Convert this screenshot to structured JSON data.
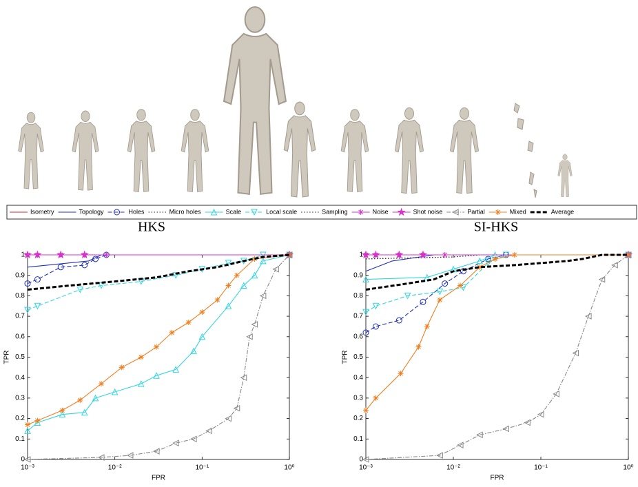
{
  "chart_data": [
    {
      "type": "line",
      "title": "HKS",
      "xlabel": "FPR",
      "ylabel": "TPR",
      "xscale": "log",
      "grid": false,
      "legend": "top",
      "xlim": [
        0.001,
        1
      ],
      "ylim": [
        0,
        1
      ],
      "xticks": [
        {
          "value": 0.001,
          "label": "10⁻³"
        },
        {
          "value": 0.01,
          "label": "10⁻²"
        },
        {
          "value": 0.1,
          "label": "10⁻¹"
        },
        {
          "value": 1,
          "label": "10⁰"
        }
      ],
      "yticks": [
        0,
        0.1,
        0.2,
        0.3,
        0.4,
        0.5,
        0.6,
        0.7,
        0.8,
        0.9,
        1
      ],
      "series": [
        {
          "name": "Isometry",
          "color": "#d62728",
          "dash": "solid",
          "marker": "none",
          "x": [
            0.001,
            1
          ],
          "values": [
            1,
            1
          ]
        },
        {
          "name": "Topology",
          "color": "#1f2fbf",
          "dash": "solid",
          "marker": "none",
          "x": [
            0.001,
            0.005,
            0.007,
            1
          ],
          "values": [
            0.94,
            0.97,
            1,
            1
          ]
        },
        {
          "name": "Holes",
          "color": "#1f2fbf",
          "dash": "dash",
          "marker": "circle",
          "x": [
            0.001,
            0.0013,
            0.0024,
            0.0045,
            0.006,
            0.008,
            1
          ],
          "values": [
            0.86,
            0.88,
            0.94,
            0.95,
            0.98,
            1,
            1
          ]
        },
        {
          "name": "Micro holes",
          "color": "#222222",
          "dash": "dot",
          "marker": "none",
          "x": [
            0.001,
            1
          ],
          "values": [
            1,
            1
          ]
        },
        {
          "name": "Scale",
          "color": "#33d6e0",
          "dash": "solid",
          "marker": "triangle-up",
          "x": [
            0.001,
            0.0013,
            0.0025,
            0.0045,
            0.006,
            0.01,
            0.02,
            0.03,
            0.05,
            0.08,
            0.1,
            0.2,
            0.3,
            0.4,
            0.5,
            1
          ],
          "values": [
            0.14,
            0.18,
            0.22,
            0.23,
            0.3,
            0.33,
            0.37,
            0.41,
            0.44,
            0.53,
            0.6,
            0.75,
            0.85,
            0.9,
            0.97,
            1
          ]
        },
        {
          "name": "Local scale",
          "color": "#33d6e0",
          "dash": "dash",
          "marker": "triangle-down",
          "x": [
            0.001,
            0.0013,
            0.004,
            0.007,
            0.02,
            0.05,
            0.1,
            0.2,
            0.3,
            0.5,
            1
          ],
          "values": [
            0.73,
            0.75,
            0.83,
            0.85,
            0.87,
            0.9,
            0.93,
            0.96,
            0.97,
            1,
            1
          ]
        },
        {
          "name": "Sampling",
          "color": "#222222",
          "dash": "dot",
          "marker": "none",
          "x": [
            0.001,
            1
          ],
          "values": [
            1,
            1
          ]
        },
        {
          "name": "Noise",
          "color": "#d633c8",
          "dash": "solid",
          "marker": "asterisk",
          "x": [
            0.001,
            0.0013,
            0.0024,
            0.0045,
            0.008,
            1
          ],
          "values": [
            1,
            1,
            1,
            1,
            1,
            1
          ]
        },
        {
          "name": "Shot noise",
          "color": "#d633c8",
          "dash": "solid",
          "marker": "star",
          "x": [
            0.001,
            0.0013,
            0.0024,
            0.0045,
            1
          ],
          "values": [
            1,
            1,
            1,
            1,
            1
          ]
        },
        {
          "name": "Partial",
          "color": "#888888",
          "dash": "dashdot",
          "marker": "triangle-left",
          "x": [
            0.001,
            0.007,
            0.015,
            0.03,
            0.05,
            0.08,
            0.12,
            0.2,
            0.25,
            0.3,
            0.35,
            0.4,
            0.5,
            0.7,
            1
          ],
          "values": [
            0,
            0.01,
            0.02,
            0.04,
            0.08,
            0.1,
            0.14,
            0.2,
            0.25,
            0.4,
            0.6,
            0.66,
            0.8,
            0.93,
            1
          ]
        },
        {
          "name": "Mixed",
          "color": "#f07f1f",
          "dash": "solid",
          "marker": "asterisk",
          "x": [
            0.001,
            0.0013,
            0.0025,
            0.004,
            0.007,
            0.012,
            0.02,
            0.03,
            0.045,
            0.07,
            0.1,
            0.15,
            0.2,
            0.25,
            0.4,
            1
          ],
          "values": [
            0.17,
            0.19,
            0.24,
            0.29,
            0.37,
            0.45,
            0.5,
            0.55,
            0.62,
            0.67,
            0.72,
            0.78,
            0.85,
            0.9,
            0.98,
            1
          ]
        },
        {
          "name": "Average",
          "color": "#000000",
          "dash": "thick",
          "marker": "none",
          "x": [
            0.001,
            0.003,
            0.01,
            0.03,
            0.07,
            0.15,
            0.3,
            0.5,
            1
          ],
          "values": [
            0.83,
            0.85,
            0.87,
            0.89,
            0.92,
            0.94,
            0.97,
            0.99,
            1
          ]
        }
      ]
    },
    {
      "type": "line",
      "title": "SI-HKS",
      "xlabel": "FPR",
      "ylabel": "TPR",
      "xscale": "log",
      "grid": false,
      "xlim": [
        0.001,
        1
      ],
      "ylim": [
        0,
        1
      ],
      "xticks": [
        {
          "value": 0.001,
          "label": "10⁻³"
        },
        {
          "value": 0.01,
          "label": "10⁻²"
        },
        {
          "value": 0.1,
          "label": "10⁻¹"
        },
        {
          "value": 1,
          "label": "10⁰"
        }
      ],
      "yticks": [
        0,
        0.1,
        0.2,
        0.3,
        0.4,
        0.5,
        0.6,
        0.7,
        0.8,
        0.9,
        1
      ],
      "series": [
        {
          "name": "Isometry",
          "color": "#d62728",
          "dash": "solid",
          "marker": "none",
          "x": [
            0.001,
            1
          ],
          "values": [
            1,
            1
          ]
        },
        {
          "name": "Topology",
          "color": "#1f2fbf",
          "dash": "solid",
          "marker": "none",
          "x": [
            0.001,
            0.002,
            0.006,
            1
          ],
          "values": [
            0.92,
            0.97,
            1,
            1
          ]
        },
        {
          "name": "Holes",
          "color": "#1f2fbf",
          "dash": "dash",
          "marker": "circle",
          "x": [
            0.001,
            0.0013,
            0.0024,
            0.0045,
            0.008,
            0.013,
            0.025,
            0.04,
            1
          ],
          "values": [
            0.62,
            0.65,
            0.68,
            0.77,
            0.86,
            0.92,
            0.98,
            1,
            1
          ]
        },
        {
          "name": "Micro holes",
          "color": "#222222",
          "dash": "dot",
          "marker": "none",
          "x": [
            0.001,
            0.01,
            0.02,
            1
          ],
          "values": [
            0.98,
            0.99,
            1,
            1
          ]
        },
        {
          "name": "Scale",
          "color": "#33d6e0",
          "dash": "solid",
          "marker": "triangle-up",
          "x": [
            0.001,
            0.005,
            0.01,
            0.02,
            0.03,
            1
          ],
          "values": [
            0.88,
            0.89,
            0.93,
            0.97,
            1,
            1
          ]
        },
        {
          "name": "Local scale",
          "color": "#33d6e0",
          "dash": "dash",
          "marker": "triangle-down",
          "x": [
            0.001,
            0.0013,
            0.003,
            0.007,
            0.013,
            0.025,
            0.04,
            1
          ],
          "values": [
            0.72,
            0.75,
            0.8,
            0.82,
            0.84,
            0.96,
            1,
            1
          ]
        },
        {
          "name": "Sampling",
          "color": "#222222",
          "dash": "dot",
          "marker": "none",
          "x": [
            0.001,
            0.01,
            0.02,
            1
          ],
          "values": [
            0.98,
            0.99,
            1,
            1
          ]
        },
        {
          "name": "Noise",
          "color": "#d633c8",
          "dash": "solid",
          "marker": "asterisk",
          "x": [
            0.001,
            0.0013,
            0.0024,
            0.0045,
            0.008,
            1
          ],
          "values": [
            1,
            1,
            1,
            1,
            1,
            1
          ]
        },
        {
          "name": "Shot noise",
          "color": "#d633c8",
          "dash": "solid",
          "marker": "star",
          "x": [
            0.001,
            0.0013,
            0.0024,
            0.0045,
            1
          ],
          "values": [
            1,
            1,
            1,
            1,
            1
          ]
        },
        {
          "name": "Partial",
          "color": "#888888",
          "dash": "dashdot",
          "marker": "triangle-left",
          "x": [
            0.001,
            0.007,
            0.012,
            0.02,
            0.04,
            0.07,
            0.1,
            0.15,
            0.25,
            0.35,
            0.5,
            0.7,
            1
          ],
          "values": [
            0,
            0.02,
            0.07,
            0.12,
            0.15,
            0.18,
            0.22,
            0.32,
            0.52,
            0.7,
            0.88,
            0.95,
            1
          ]
        },
        {
          "name": "Mixed",
          "color": "#f07f1f",
          "dash": "solid",
          "marker": "asterisk",
          "x": [
            0.001,
            0.0013,
            0.0025,
            0.004,
            0.005,
            0.007,
            0.012,
            0.02,
            0.03,
            0.05,
            1
          ],
          "values": [
            0.24,
            0.3,
            0.42,
            0.55,
            0.65,
            0.78,
            0.85,
            0.94,
            0.98,
            1,
            1
          ]
        },
        {
          "name": "Average",
          "color": "#000000",
          "dash": "thick",
          "marker": "none",
          "x": [
            0.001,
            0.003,
            0.006,
            0.01,
            0.02,
            0.05,
            0.1,
            0.2,
            0.3,
            0.5,
            1
          ],
          "values": [
            0.83,
            0.86,
            0.88,
            0.92,
            0.94,
            0.95,
            0.96,
            0.97,
            0.98,
            1,
            1
          ]
        }
      ]
    }
  ]
}
